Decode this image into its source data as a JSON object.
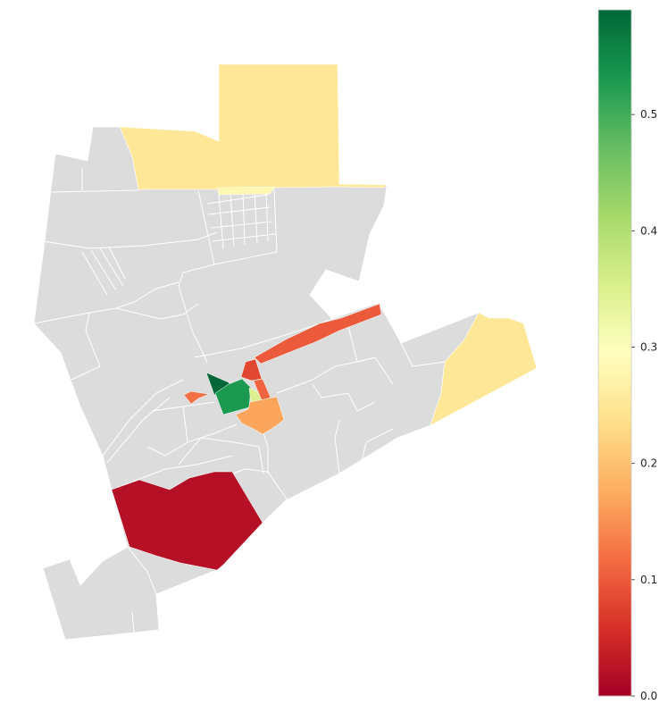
{
  "colorbar": {
    "colormap": "RdYlGn",
    "min": 0.0,
    "max": 0.59,
    "ticks": [
      {
        "value": 0.0,
        "label": "0.0"
      },
      {
        "value": 0.1,
        "label": "0.1"
      },
      {
        "value": 0.2,
        "label": "0.2"
      },
      {
        "value": 0.3,
        "label": "0.3"
      },
      {
        "value": 0.4,
        "label": "0.4"
      },
      {
        "value": 0.5,
        "label": "0.5"
      }
    ]
  },
  "regions": [
    {
      "id": "north-block",
      "value": 0.25
    },
    {
      "id": "north-strip",
      "value": 0.28
    },
    {
      "id": "east-block",
      "value": 0.25
    },
    {
      "id": "south-block",
      "value": 0.02
    },
    {
      "id": "diagonal-strip",
      "value": 0.1
    },
    {
      "id": "center-dark-green",
      "value": 0.59
    },
    {
      "id": "center-green",
      "value": 0.53
    },
    {
      "id": "center-yellow-green",
      "value": 0.35
    },
    {
      "id": "center-red-north",
      "value": 0.08
    },
    {
      "id": "center-red-east",
      "value": 0.11
    },
    {
      "id": "center-orange",
      "value": 0.17
    },
    {
      "id": "west-small",
      "value": 0.12
    }
  ],
  "no_data_color": "#dcdcdc"
}
